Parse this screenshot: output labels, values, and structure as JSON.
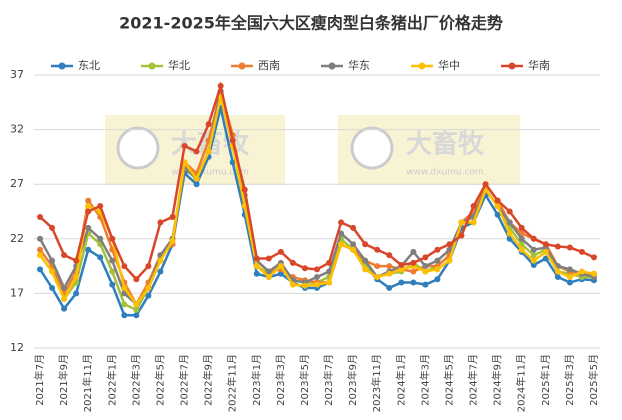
{
  "chart_data": {
    "type": "line",
    "title": "2021-2025年全国六大区瘦肉型白条猪出厂价格走势",
    "watermark": {
      "text": "大畜牧",
      "url": "www.dxumu.com"
    },
    "categories": [
      "2021年7月",
      null,
      "2021年9月",
      null,
      "2021年11月",
      null,
      "2022年1月",
      null,
      "2022年3月",
      null,
      "2022年5月",
      null,
      "2022年7月",
      null,
      "2022年9月",
      null,
      "2022年11月",
      null,
      "2023年1月",
      null,
      "2023年3月",
      null,
      "2023年5月",
      null,
      "2023年7月",
      null,
      "2023年9月",
      null,
      "2023年11月",
      null,
      "2024年1月",
      null,
      "2024年3月",
      null,
      "2024年5月",
      null,
      "2024年7月",
      null,
      "2024年9月",
      null,
      "2024年11月",
      null,
      "2025年1月",
      null,
      "2025年3月",
      null,
      "2025年5月"
    ],
    "series": [
      {
        "name": "东北",
        "color": "#2f7ebd",
        "values": [
          19.2,
          17.5,
          15.6,
          17,
          21,
          20.3,
          17.8,
          15,
          15,
          16.8,
          19,
          21.5,
          28,
          27,
          29.5,
          34,
          29,
          24.2,
          18.8,
          18.5,
          18.8,
          18,
          17.5,
          17.5,
          18,
          21.5,
          21,
          19.5,
          18.3,
          17.5,
          18,
          18,
          17.8,
          18.3,
          20,
          23,
          23.5,
          26,
          24.2,
          22,
          20.8,
          19.6,
          20.2,
          18.5,
          18,
          18.3,
          18.2
        ]
      },
      {
        "name": "华北",
        "color": "#a5c13a",
        "values": [
          20.5,
          19,
          16.5,
          18,
          22.5,
          21.5,
          19,
          16,
          15.5,
          17.5,
          20,
          22,
          28.5,
          27.5,
          30,
          35,
          30.5,
          25,
          19.5,
          18.8,
          19.5,
          18.2,
          18,
          18,
          18.5,
          22,
          21,
          19.5,
          18.5,
          18.8,
          19,
          19.8,
          19,
          19.5,
          20.5,
          23.5,
          24,
          26.5,
          25,
          23,
          21.5,
          20.5,
          21,
          19,
          18.8,
          18.5,
          18.5
        ]
      },
      {
        "name": "西南",
        "color": "#ed7d31",
        "values": [
          21,
          19.5,
          17,
          19,
          25.5,
          24,
          21,
          18,
          16,
          18,
          20.5,
          21.5,
          29,
          28,
          31,
          35.5,
          31.5,
          26,
          20,
          19,
          19.2,
          18.5,
          18.2,
          18,
          18,
          21.5,
          21,
          20,
          19.5,
          19.5,
          19.2,
          19,
          19.5,
          19.5,
          20.5,
          23.5,
          24.5,
          27,
          25.5,
          23.5,
          22.5,
          22,
          21.5,
          19.5,
          19,
          18.8,
          18.8
        ]
      },
      {
        "name": "华东",
        "color": "#7f7f7f",
        "values": [
          22,
          20,
          17.5,
          19.5,
          23,
          22,
          20,
          17,
          16,
          17.5,
          20.5,
          22,
          28.5,
          27.5,
          30,
          35.5,
          30.5,
          25.5,
          20,
          19,
          19.8,
          18.2,
          18,
          18.5,
          19,
          22.5,
          21.5,
          20,
          18.5,
          19,
          19.5,
          20.8,
          19.5,
          20,
          21,
          23.5,
          24,
          26.5,
          25,
          23.5,
          22,
          21,
          21.2,
          19.5,
          19.2,
          18.8,
          18.5
        ]
      },
      {
        "name": "华中",
        "color": "#ffc000",
        "values": [
          20.5,
          19,
          16.5,
          18.5,
          25,
          24.5,
          22,
          17.5,
          16,
          17.5,
          20,
          21.8,
          29,
          27.5,
          30,
          35,
          30.5,
          25,
          19.5,
          18.5,
          19.5,
          17.8,
          17.7,
          17.8,
          18,
          21.5,
          21,
          19.2,
          18.5,
          18.8,
          19.2,
          19.5,
          19,
          19.2,
          20,
          23.5,
          23.5,
          26.5,
          25,
          22.5,
          21,
          20,
          20.8,
          19,
          18.5,
          19,
          18.8
        ]
      },
      {
        "name": "华南",
        "color": "#d9472b",
        "values": [
          24,
          23,
          20.5,
          20,
          24.5,
          25,
          22,
          19.5,
          18.3,
          19.5,
          23.5,
          24,
          30.5,
          30,
          32.5,
          36,
          31,
          26.5,
          20.2,
          20.2,
          20.8,
          19.8,
          19.3,
          19.2,
          19.8,
          23.5,
          23,
          21.5,
          21,
          20.5,
          19.6,
          19.8,
          20.3,
          21,
          21.5,
          22.3,
          25,
          27,
          25.5,
          24.5,
          23,
          22,
          21.5,
          21.3,
          21.2,
          20.8,
          20.3
        ]
      }
    ],
    "ylim": [
      12,
      37
    ],
    "yticks": [
      12,
      17,
      22,
      27,
      32,
      37
    ],
    "grid": true
  }
}
